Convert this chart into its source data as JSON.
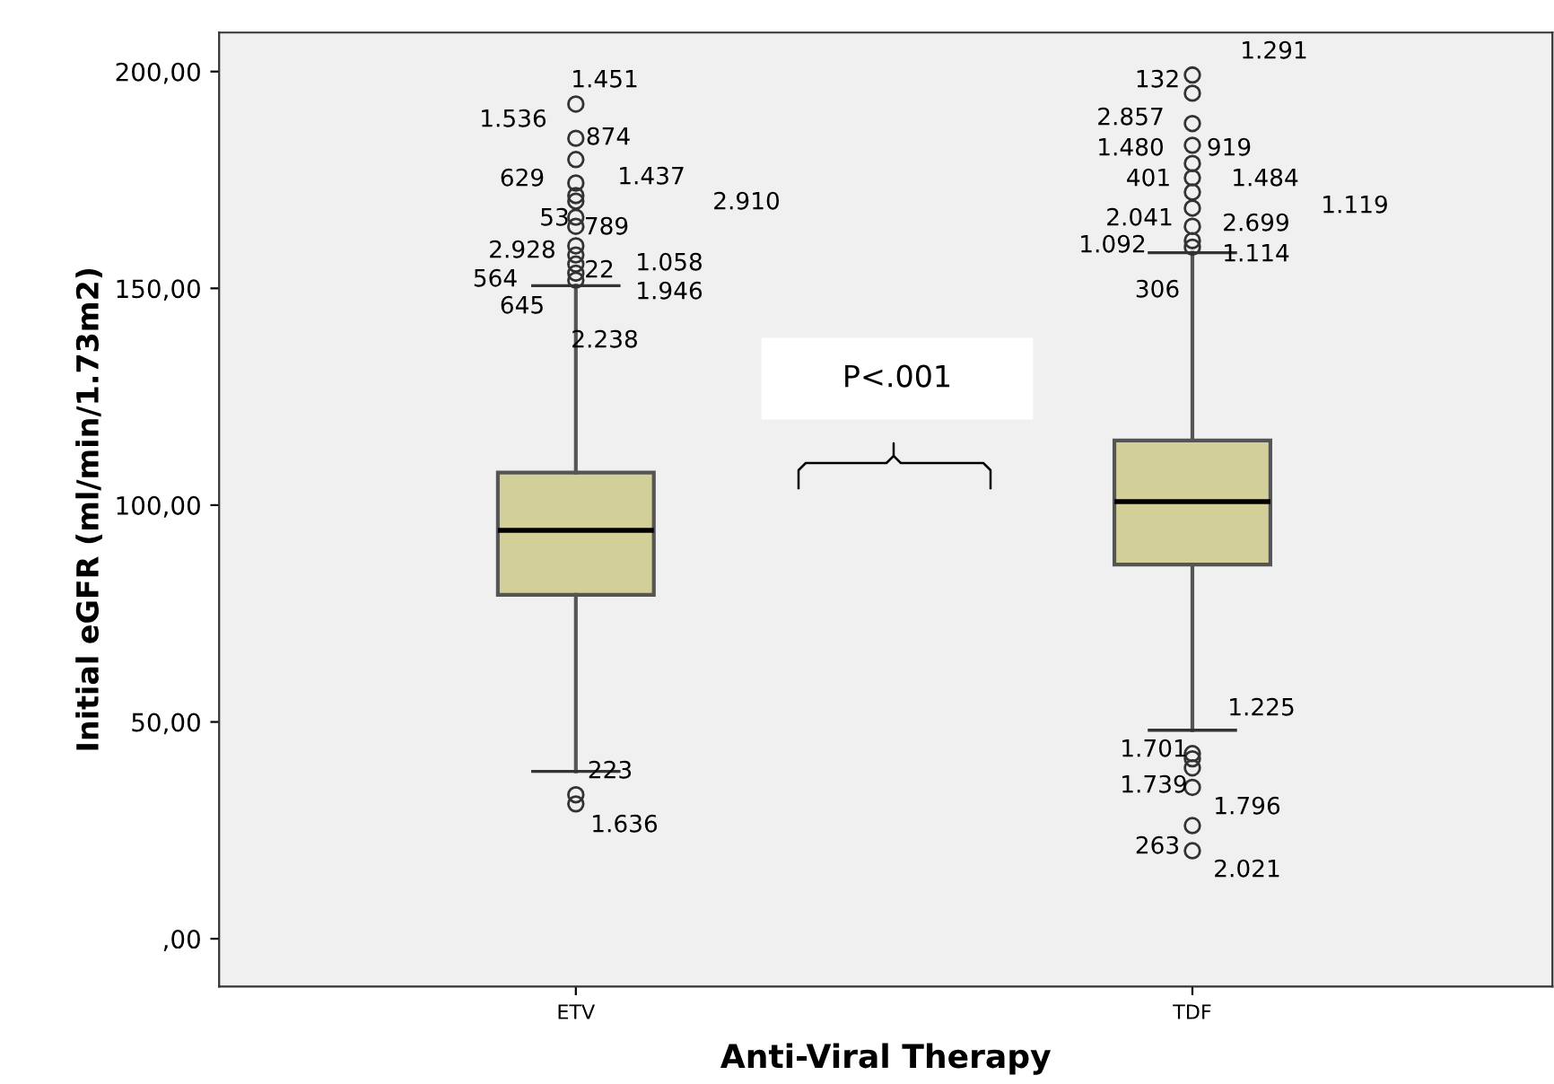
{
  "chart_data": {
    "type": "box",
    "xlabel": "Anti-Viral Therapy",
    "ylabel": "Initial eGFR (ml/min/1.73m2)",
    "categories": [
      "ETV",
      "TDF"
    ],
    "boxes": [
      {
        "low": 38.6,
        "q1": 79.3,
        "median": 94.2,
        "q3": 107.5,
        "high": 150.6,
        "outliers": [
          192.5,
          184.6,
          179.7,
          174.3,
          171.4,
          170.1,
          166.4,
          164.3,
          159.8,
          157.7,
          155.6,
          153.5,
          151.9,
          33.2,
          31.1
        ]
      },
      {
        "low": 48.1,
        "q1": 86.3,
        "median": 100.8,
        "q3": 114.9,
        "high": 158.2,
        "outliers": [
          199.2,
          195.0,
          188.0,
          183.0,
          178.8,
          175.5,
          172.2,
          168.5,
          164.3,
          161.0,
          159.5,
          42.7,
          41.5,
          39.4,
          34.9,
          26.1,
          20.3
        ]
      }
    ],
    "color": "#d3cf98",
    "ylim": [
      -11,
      209
    ],
    "yticks": [
      {
        "value": 0,
        "label": ",00"
      },
      {
        "value": 50,
        "label": "50,00"
      },
      {
        "value": 100,
        "label": "100,00"
      },
      {
        "value": 150,
        "label": "150,00"
      },
      {
        "value": 200,
        "label": "200,00"
      }
    ],
    "grid": false,
    "annotations": [
      "1.451",
      "1.536",
      "874",
      "629",
      "1.437",
      "2.910",
      "53",
      "789",
      "2.928",
      "22",
      "1.058",
      "564",
      "1.946",
      "645",
      "2.238",
      "223",
      "1.636",
      "1.291",
      "132",
      "2.857",
      "1.480",
      "919",
      "401",
      "1.484",
      "1.119",
      "2.041",
      "2.699",
      "1.092",
      "1.114",
      "306",
      "1.225",
      "1.701",
      "1.739",
      "1.796",
      "263",
      "2.021",
      "P<.001"
    ]
  }
}
